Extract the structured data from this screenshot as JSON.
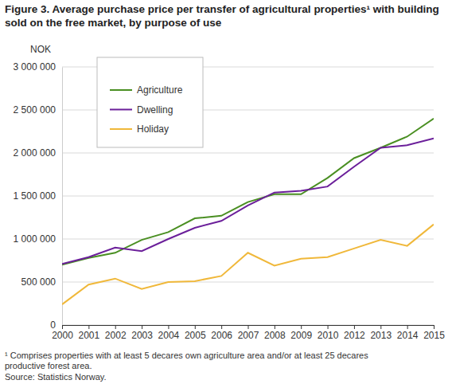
{
  "chart_data": {
    "type": "line",
    "title": "Figure 3. Average purchase price per transfer of agricultural properties¹ with building sold on the free market, by purpose of use",
    "y_label": "NOK",
    "footnote": "¹ Comprises properties with at least 5 decares own agriculture area and/or at least 25 decares productive forest area.",
    "source": "Source: Statistics Norway.",
    "categories": [
      "2000",
      "2001",
      "2002",
      "2003",
      "2004",
      "2005",
      "2006",
      "2007",
      "2008",
      "2009",
      "2010",
      "2012",
      "2013",
      "2014",
      "2015"
    ],
    "series": [
      {
        "name": "Agriculture",
        "color": "#4a8f22",
        "values": [
          700000,
          780000,
          840000,
          990000,
          1080000,
          1240000,
          1270000,
          1430000,
          1520000,
          1520000,
          1710000,
          1940000,
          2060000,
          2190000,
          2400000
        ]
      },
      {
        "name": "Dwelling",
        "color": "#6b1f9a",
        "values": [
          710000,
          790000,
          900000,
          860000,
          1000000,
          1130000,
          1210000,
          1390000,
          1540000,
          1560000,
          1610000,
          1840000,
          2060000,
          2090000,
          2170000
        ]
      },
      {
        "name": "Holiday",
        "color": "#f0b83a",
        "values": [
          240000,
          470000,
          540000,
          420000,
          500000,
          510000,
          570000,
          840000,
          690000,
          770000,
          790000,
          890000,
          990000,
          920000,
          1170000
        ]
      }
    ],
    "ylim": [
      0,
      3000000
    ],
    "yticks": [
      0,
      {
        "value": 500000,
        "label": "500 000"
      },
      {
        "value": 1000000,
        "label": "1 000 000"
      },
      {
        "value": 1500000,
        "label": "1 500 000"
      },
      {
        "value": 2000000,
        "label": "2 000 000"
      },
      {
        "value": 2500000,
        "label": "2 500 000"
      },
      {
        "value": 3000000,
        "label": "3 000 000"
      }
    ],
    "grid": true,
    "legend": "top-left"
  }
}
